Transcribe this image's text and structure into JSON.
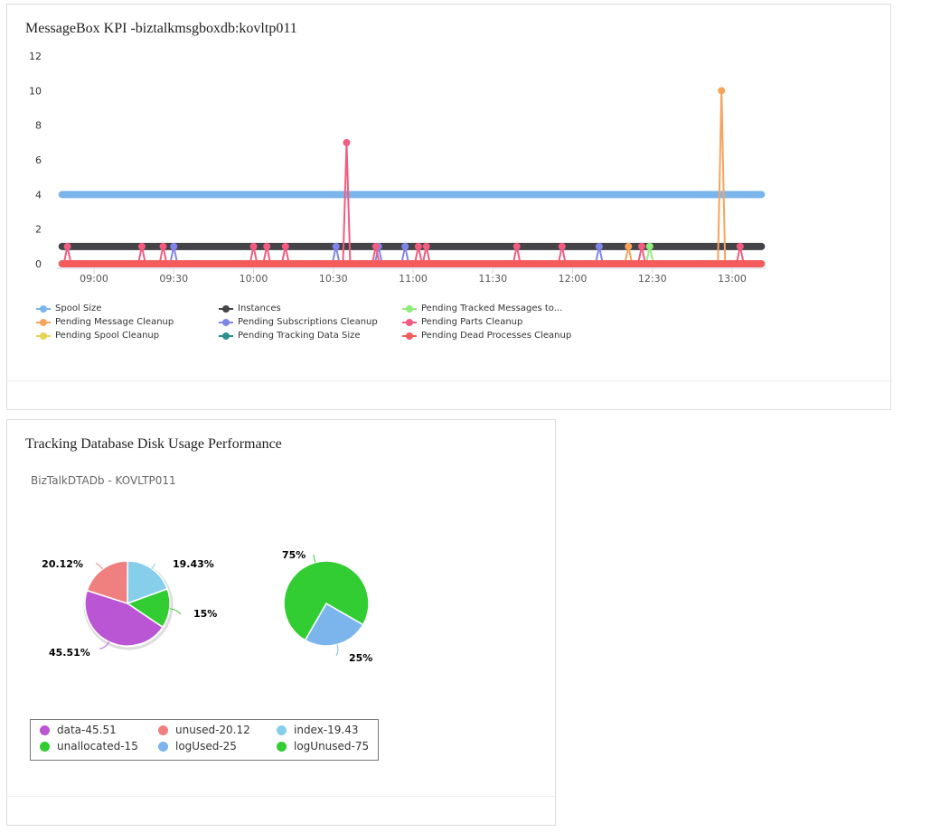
{
  "kpi_panel": {
    "title": "MessageBox KPI -biztalkmsgboxdb:kovltp011"
  },
  "disk_panel": {
    "title": "Tracking Database Disk Usage Performance",
    "subtitle": "BizTalkDTADb - KOVLTP011"
  },
  "chart_data": [
    {
      "type": "line",
      "ylim": [
        0,
        12
      ],
      "yticks": [
        "0",
        "2",
        "4",
        "6",
        "8",
        "10",
        "12"
      ],
      "xticks": [
        "09:00",
        "09:30",
        "10:00",
        "10:30",
        "11:00",
        "11:30",
        "12:00",
        "12:30",
        "13:00"
      ],
      "x_range": [
        "08:48",
        "13:11"
      ],
      "legend_position": "bottom",
      "series": [
        {
          "name": "Spool Size",
          "color": "#7cb5ec",
          "baseline": 4,
          "spikes": []
        },
        {
          "name": "Instances",
          "color": "#434348",
          "baseline": 1,
          "spikes": []
        },
        {
          "name": "Pending Tracked Messages to...",
          "color": "#90ed7d",
          "baseline": 0,
          "spikes": [
            [
              "12:29",
              1
            ]
          ]
        },
        {
          "name": "Pending Message Cleanup",
          "color": "#f7a35c",
          "baseline": 0,
          "spikes": [
            [
              "12:21",
              1
            ],
            [
              "12:56",
              10
            ]
          ]
        },
        {
          "name": "Pending Subscriptions Cleanup",
          "color": "#8085e9",
          "baseline": 0,
          "spikes": [
            [
              "09:30",
              1
            ],
            [
              "10:31",
              1
            ],
            [
              "10:47",
              1
            ],
            [
              "10:57",
              1
            ],
            [
              "12:10",
              1
            ]
          ]
        },
        {
          "name": "Pending Parts Cleanup",
          "color": "#f15c80",
          "baseline": 0,
          "spikes": [
            [
              "08:50",
              1
            ],
            [
              "09:18",
              1
            ],
            [
              "09:26",
              1
            ],
            [
              "10:00",
              1
            ],
            [
              "10:05",
              1
            ],
            [
              "10:12",
              1
            ],
            [
              "10:35",
              7
            ],
            [
              "10:46",
              1
            ],
            [
              "11:02",
              1
            ],
            [
              "11:05",
              1
            ],
            [
              "11:39",
              1
            ],
            [
              "11:56",
              1
            ],
            [
              "12:26",
              1
            ],
            [
              "13:03",
              1
            ]
          ]
        },
        {
          "name": "Pending Spool Cleanup",
          "color": "#e4d354",
          "baseline": 0,
          "spikes": []
        },
        {
          "name": "Pending Tracking Data Size",
          "color": "#2b908f",
          "baseline": 0,
          "spikes": []
        },
        {
          "name": "Pending Dead Processes Cleanup",
          "color": "#f45b5b",
          "baseline": 0,
          "spikes": []
        }
      ]
    },
    {
      "type": "pie",
      "start_angle": 0,
      "slices": [
        {
          "label": "19.43%",
          "value": 19.43,
          "color": "#87ceeb"
        },
        {
          "label": "15%",
          "value": 15,
          "color": "#32cd32"
        },
        {
          "label": "45.51%",
          "value": 45.51,
          "color": "#ba55d3"
        },
        {
          "label": "20.12%",
          "value": 20.12,
          "color": "#f08080"
        }
      ]
    },
    {
      "type": "pie",
      "start_angle": 120,
      "slices": [
        {
          "label": "25%",
          "value": 25,
          "color": "#7cb5ec"
        },
        {
          "label": "75%",
          "value": 75,
          "color": "#32cd32"
        }
      ]
    }
  ],
  "pie_legend": [
    {
      "label": "data-45.51",
      "color": "#ba55d3"
    },
    {
      "label": "unused-20.12",
      "color": "#f08080"
    },
    {
      "label": "index-19.43",
      "color": "#87ceeb"
    },
    {
      "label": "unallocated-15",
      "color": "#32cd32"
    },
    {
      "label": "logUsed-25",
      "color": "#7cb5ec"
    },
    {
      "label": "logUnused-75",
      "color": "#32cd32"
    }
  ]
}
